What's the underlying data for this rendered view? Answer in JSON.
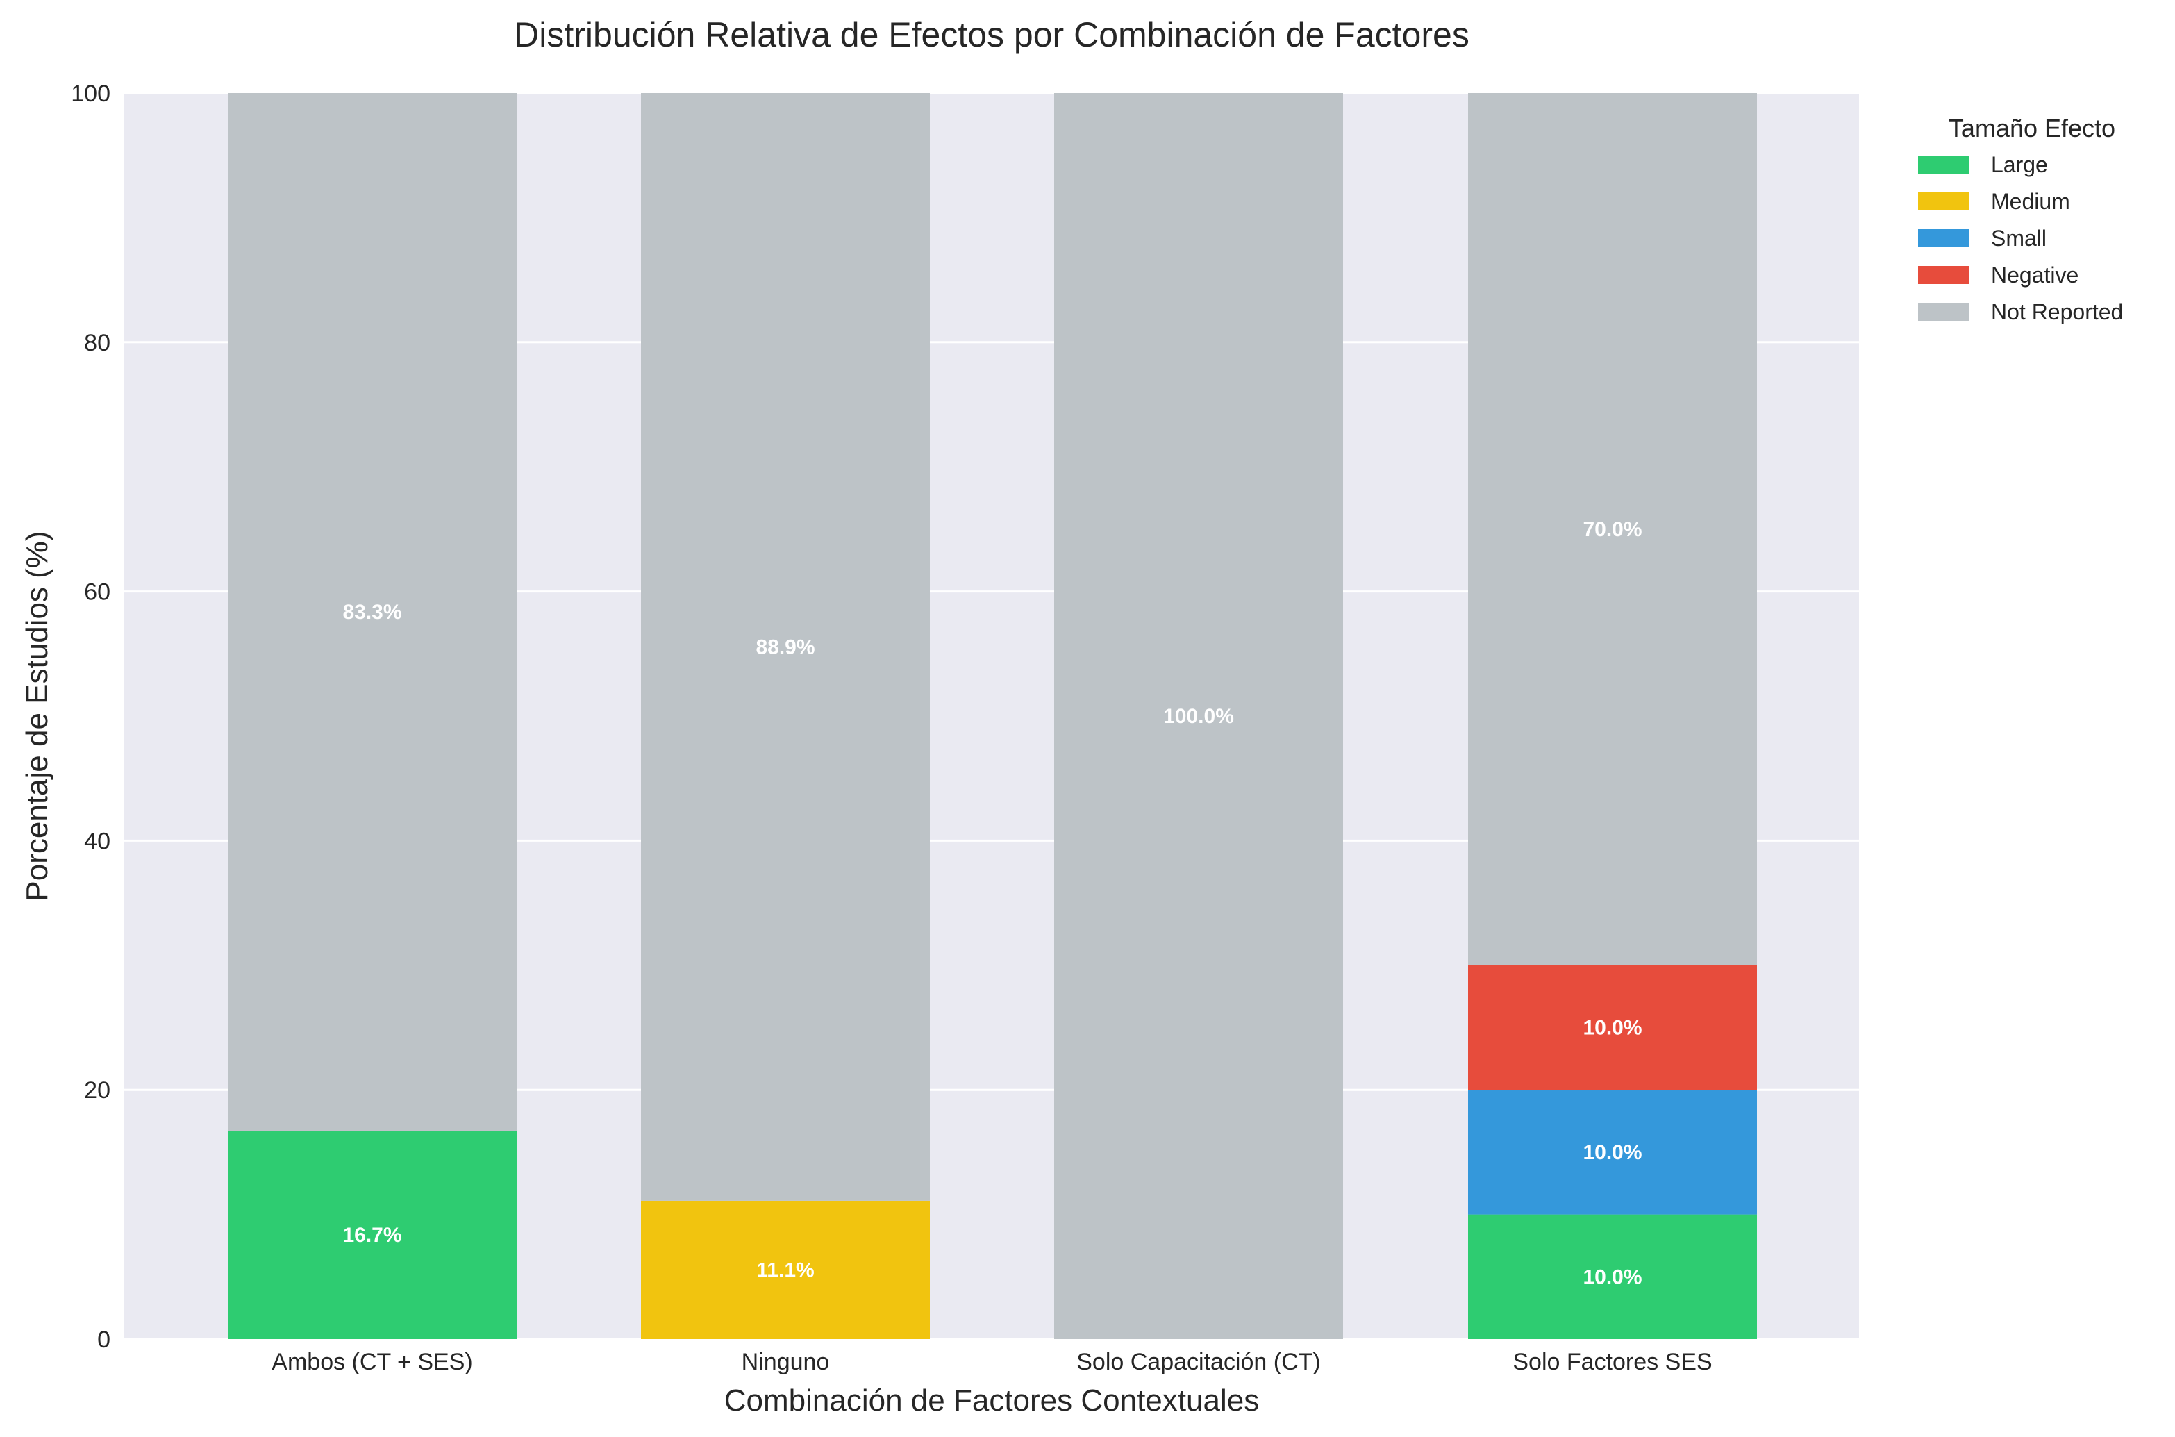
{
  "chart_data": {
    "type": "bar",
    "stacked": true,
    "title": "Distribución Relativa de Efectos por Combinación de Factores",
    "xlabel": "Combinación de Factores Contextuales",
    "ylabel": "Porcentaje de Estudios (%)",
    "ylim": [
      0,
      100
    ],
    "yticks": [
      0,
      20,
      40,
      60,
      80,
      100
    ],
    "grid": true,
    "legend_title": "Tamaño Efecto",
    "legend_position": "outside-top-right",
    "categories": [
      "Ambos (CT + SES)",
      "Ninguno",
      "Solo Capacitación (CT)",
      "Solo Factores SES"
    ],
    "series": [
      {
        "name": "Large",
        "color": "#2ecc71",
        "values": [
          16.7,
          0,
          0,
          10.0
        ],
        "labels": [
          "16.7%",
          "",
          "",
          "10.0%"
        ]
      },
      {
        "name": "Medium",
        "color": "#f1c40f",
        "values": [
          0,
          11.1,
          0,
          0
        ],
        "labels": [
          "",
          "11.1%",
          "",
          ""
        ]
      },
      {
        "name": "Small",
        "color": "#3498db",
        "values": [
          0,
          0,
          0,
          10.0
        ],
        "labels": [
          "",
          "",
          "",
          "10.0%"
        ]
      },
      {
        "name": "Negative",
        "color": "#e74c3c",
        "values": [
          0,
          0,
          0,
          10.0
        ],
        "labels": [
          "",
          "",
          "",
          "10.0%"
        ]
      },
      {
        "name": "Not Reported",
        "color": "#bdc3c7",
        "values": [
          83.3,
          88.9,
          100.0,
          70.0
        ],
        "labels": [
          "83.3%",
          "88.9%",
          "100.0%",
          "70.0%"
        ]
      }
    ],
    "plot_background": "#eaeaf2",
    "grid_color": "#ffffff"
  }
}
